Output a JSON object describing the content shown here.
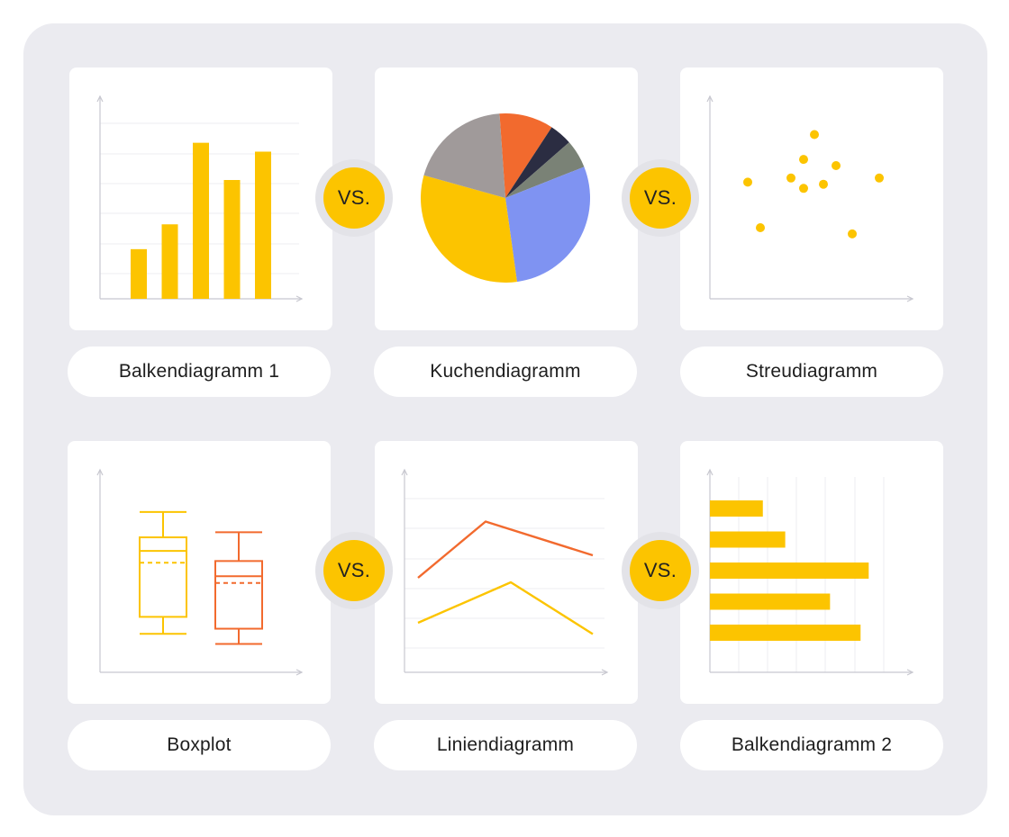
{
  "colors": {
    "yellow": "#fcc400",
    "orange": "#f26a2e",
    "dark": "#2b2d42",
    "gray_green": "#7a8276",
    "gray": "#a09a9a",
    "blue": "#7f93f2",
    "axis": "#c8c8d0",
    "grid": "#ececf0"
  },
  "vs_label": "VS.",
  "cards": [
    {
      "label": "Balkendiagramm 1"
    },
    {
      "label": "Kuchendiagramm"
    },
    {
      "label": "Streudiagramm"
    },
    {
      "label": "Boxplot"
    },
    {
      "label": "Liniendiagramm"
    },
    {
      "label": "Balkendiagramm 2"
    }
  ],
  "chart_data": [
    {
      "type": "bar",
      "values": [
        28,
        42,
        88,
        67,
        83
      ],
      "ylim": [
        0,
        100
      ]
    },
    {
      "type": "pie",
      "slices": [
        {
          "value": 9.5,
          "color": "orange"
        },
        {
          "value": 4,
          "color": "dark"
        },
        {
          "value": 5,
          "color": "gray_green"
        },
        {
          "value": 26.5,
          "color": "blue"
        },
        {
          "value": 29,
          "color": "yellow"
        },
        {
          "value": 18,
          "color": "gray"
        }
      ]
    },
    {
      "type": "scatter",
      "points": [
        [
          15,
          52
        ],
        [
          22,
          30
        ],
        [
          39,
          54
        ],
        [
          46,
          63
        ],
        [
          46,
          49
        ],
        [
          52,
          75
        ],
        [
          57,
          51
        ],
        [
          64,
          60
        ],
        [
          73,
          27
        ],
        [
          88,
          54
        ]
      ],
      "xlim": [
        0,
        100
      ],
      "ylim": [
        0,
        100
      ]
    },
    {
      "type": "boxplot",
      "boxes": [
        {
          "min": 10,
          "q1": 20,
          "median": 59,
          "mean": 52,
          "q3": 67,
          "max": 82,
          "color": "yellow"
        },
        {
          "min": 4,
          "q1": 13,
          "median": 44,
          "mean": 40,
          "q3": 53,
          "max": 70,
          "color": "orange"
        }
      ],
      "ylim": [
        0,
        100
      ]
    },
    {
      "type": "line",
      "x": [
        0,
        1,
        2
      ],
      "series": [
        {
          "values": [
            42,
            67,
            52
          ],
          "color": "orange"
        },
        {
          "values": [
            22,
            40,
            17
          ],
          "color": "yellow"
        }
      ],
      "ylim": [
        0,
        100
      ]
    },
    {
      "type": "bar",
      "orientation": "horizontal",
      "values": [
        26,
        37,
        78,
        59,
        74
      ],
      "xlim": [
        0,
        100
      ]
    }
  ]
}
